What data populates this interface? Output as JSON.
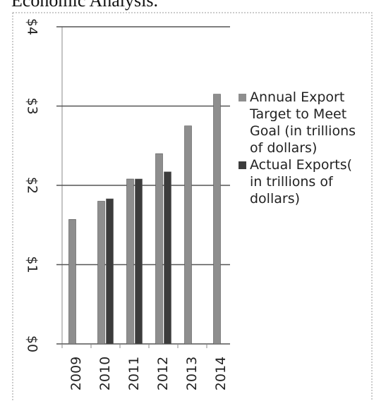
{
  "header_text": "Economic Analysis.",
  "chart_data": {
    "type": "bar",
    "categories": [
      "2009",
      "2010",
      "2011",
      "2012",
      "2013",
      "2014"
    ],
    "series": [
      {
        "name": "Annual Export Target to Meet Goal (in trillions of dollars)",
        "color": "#8e8e8e",
        "values": [
          1.57,
          1.8,
          2.08,
          2.4,
          2.75,
          3.15
        ]
      },
      {
        "name": "Actual Exports( in trillions of dollars)",
        "color": "#3c3c3c",
        "values": [
          null,
          1.83,
          2.08,
          2.17,
          null,
          null
        ]
      }
    ],
    "ylim": [
      0,
      4
    ],
    "yticks": [
      {
        "value": 0,
        "label": "$0"
      },
      {
        "value": 1,
        "label": "$1"
      },
      {
        "value": 2,
        "label": "$2"
      },
      {
        "value": 3,
        "label": "$3"
      },
      {
        "value": 4,
        "label": "$4"
      }
    ],
    "grid": true,
    "legend": "right"
  }
}
